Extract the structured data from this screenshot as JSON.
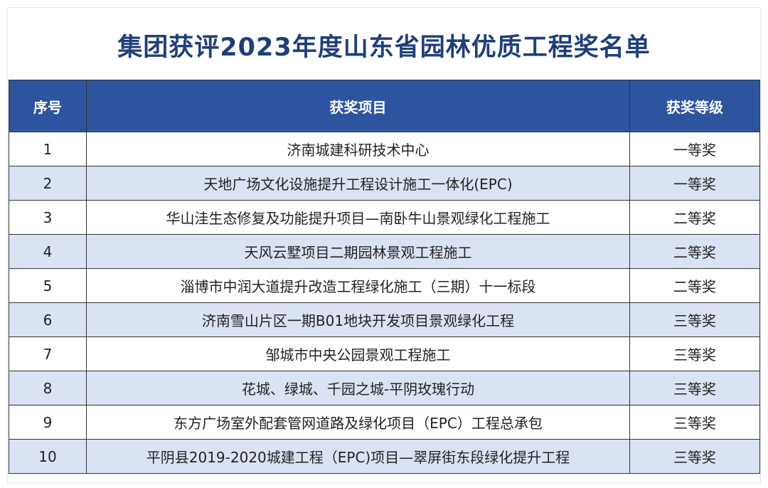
{
  "title": "集团获评2023年度山东省园林优质工程奖名单",
  "columns": [
    "序号",
    "获奖项目",
    "获奖等级"
  ],
  "rows": [
    {
      "no": "1",
      "project": "济南城建科研技术中心",
      "level": "一等奖"
    },
    {
      "no": "2",
      "project": "天地广场文化设施提升工程设计施工一体化(EPC)",
      "level": "一等奖"
    },
    {
      "no": "3",
      "project": "华山洼生态修复及功能提升项目—南卧牛山景观绿化工程施工",
      "level": "二等奖"
    },
    {
      "no": "4",
      "project": "天风云墅项目二期园林景观工程施工",
      "level": "二等奖"
    },
    {
      "no": "5",
      "project": "淄博市中润大道提升改造工程绿化施工（三期）十一标段",
      "level": "二等奖"
    },
    {
      "no": "6",
      "project": "济南雪山片区一期B01地块开发项目景观绿化工程",
      "level": "三等奖"
    },
    {
      "no": "7",
      "project": "邹城市中央公园景观工程施工",
      "level": "三等奖"
    },
    {
      "no": "8",
      "project": "花城、绿城、千园之城-平阴玫瑰行动",
      "level": "三等奖"
    },
    {
      "no": "9",
      "project": "东方广场室外配套管网道路及绿化项目（EPC）工程总承包",
      "level": "三等奖"
    },
    {
      "no": "10",
      "project": "平阴县2019-2020城建工程（EPC)项目—翠屏街东段绿化提升工程",
      "level": "三等奖"
    }
  ],
  "colors": {
    "header_bg": "#2e54a0",
    "alt_row_bg": "#dae3f3",
    "title": "#1f3f7a"
  }
}
